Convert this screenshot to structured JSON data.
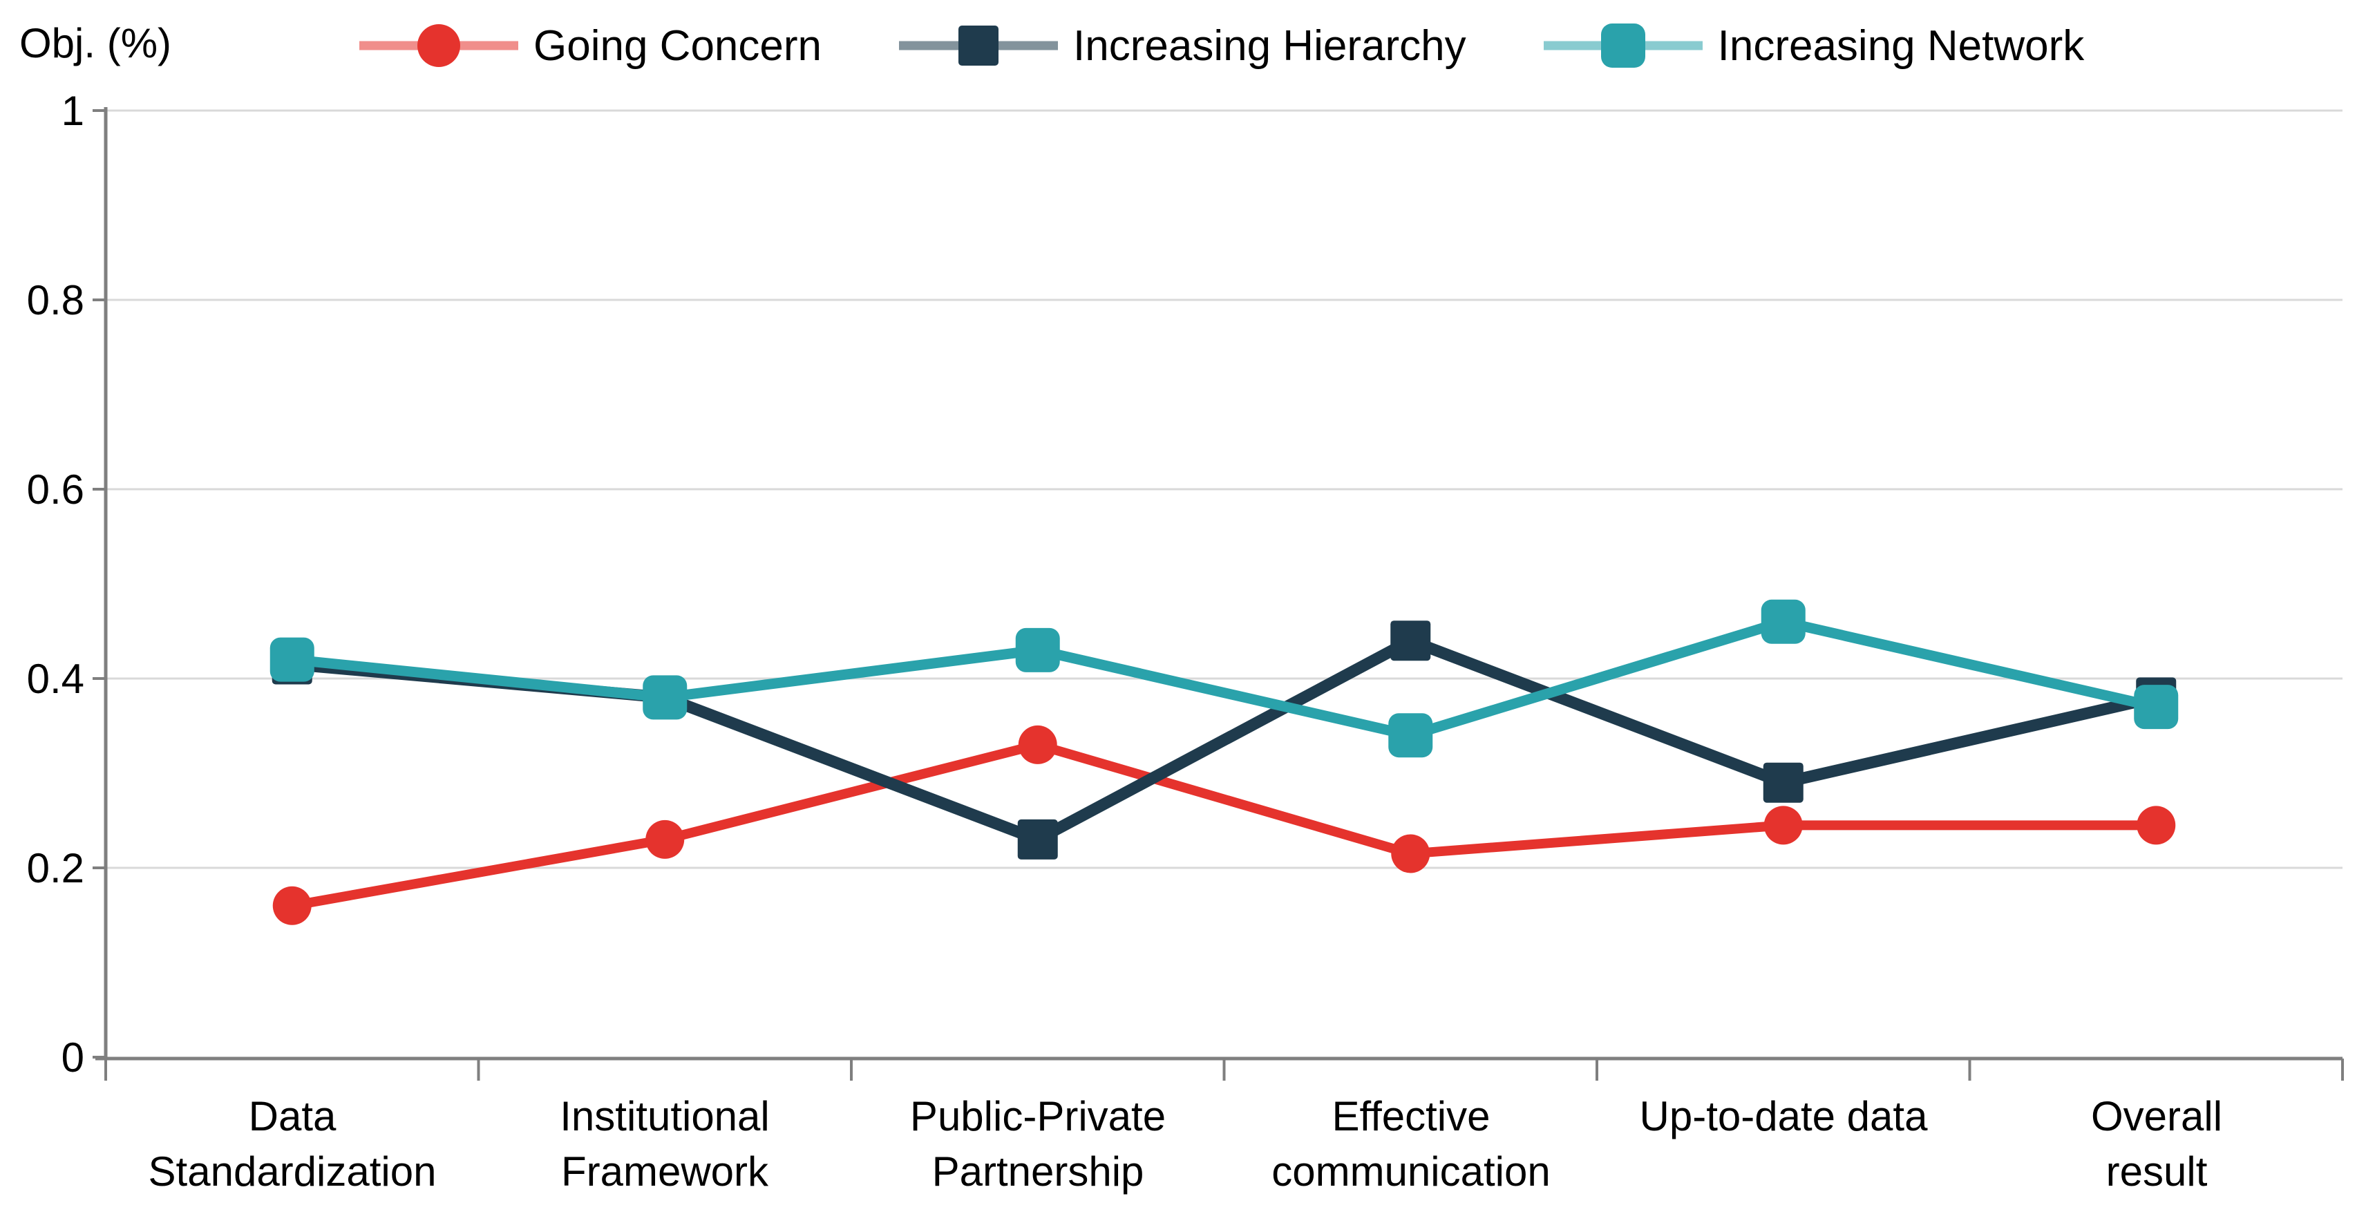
{
  "page": {
    "background": "#ffffff"
  },
  "chart_data": {
    "type": "line",
    "title": "",
    "ylabel": "Obj. (%)",
    "xlabel": "",
    "ylim": [
      0,
      1
    ],
    "yticks": [
      0,
      0.2,
      0.4,
      0.6,
      0.8,
      1
    ],
    "ytick_labels": [
      "0",
      "0.2",
      "0.4",
      "0.6",
      "0.8",
      "1"
    ],
    "categories": [
      "Data Standardization",
      "Institutional Framework",
      "Public-Private Partnership",
      "Effective communication",
      "Up-to-date data",
      "Overall result"
    ],
    "categories_lines": [
      [
        "Data",
        "Standardization"
      ],
      [
        "Institutional",
        "Framework"
      ],
      [
        "Public-Private",
        "Partnership"
      ],
      [
        "Effective",
        "communication"
      ],
      [
        "Up-to-date data"
      ],
      [
        "Overall",
        "result"
      ]
    ],
    "grid": "horizontal-only",
    "legend_position": "top",
    "series": [
      {
        "name": "Going Concern",
        "color": "#e5332d",
        "marker": "circle",
        "line_width": 14,
        "values": [
          0.16,
          0.23,
          0.33,
          0.215,
          0.245,
          0.245
        ]
      },
      {
        "name": "Increasing Hierarchy",
        "color": "#1f3b4d",
        "marker": "square",
        "line_width": 17,
        "values": [
          0.415,
          0.38,
          0.23,
          0.44,
          0.29,
          0.38
        ]
      },
      {
        "name": "Increasing Network",
        "color": "#2aa2ab",
        "marker": "rounded-square",
        "line_width": 15,
        "values": [
          0.42,
          0.38,
          0.43,
          0.34,
          0.46,
          0.37
        ]
      }
    ],
    "colors": {
      "grid": "#d9d9d9",
      "axis": "#7f7f7f",
      "text": "#000000"
    }
  }
}
